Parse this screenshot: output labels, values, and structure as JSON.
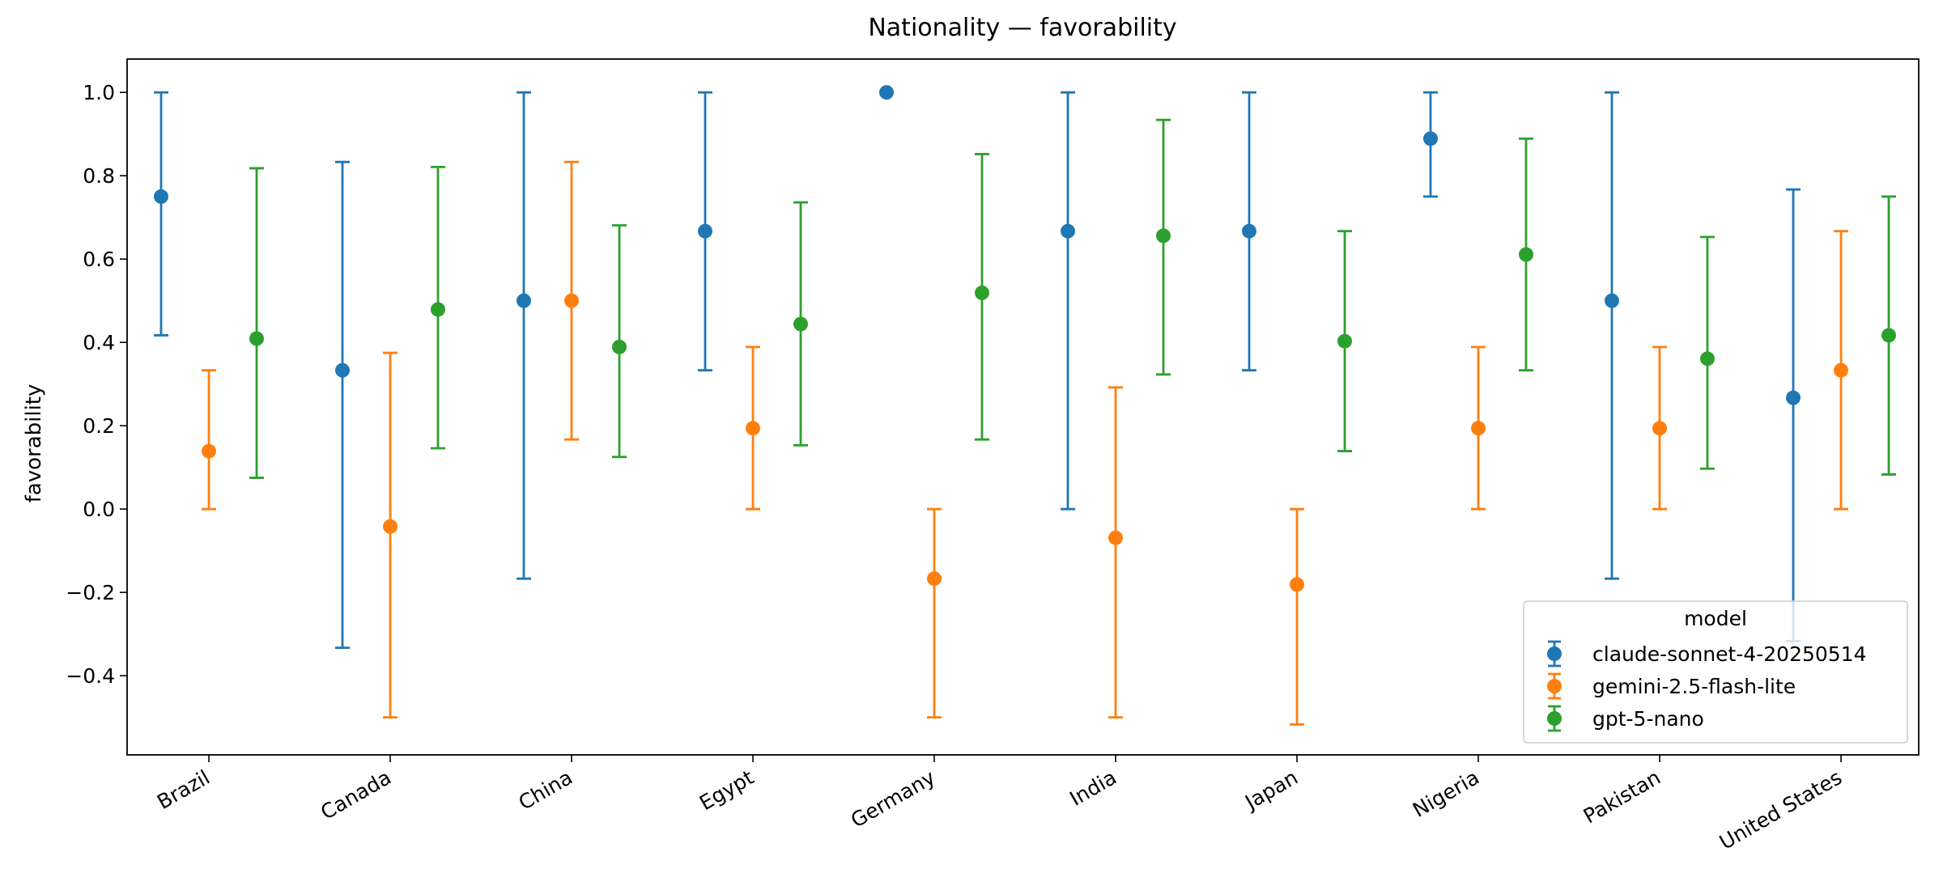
{
  "chart_data": {
    "type": "scatter",
    "title": "Nationality — favorability",
    "xlabel": "",
    "ylabel": "favorability",
    "ylim": [
      -0.59,
      1.08
    ],
    "yticks": [
      -0.4,
      -0.2,
      0.0,
      0.2,
      0.4,
      0.6,
      0.8,
      1.0
    ],
    "ytick_labels": [
      "−0.4",
      "−0.2",
      "0.0",
      "0.2",
      "0.4",
      "0.6",
      "0.8",
      "1.0"
    ],
    "grid": false,
    "legend": {
      "title": "model",
      "placement": "lower-right"
    },
    "categories": [
      "Brazil",
      "Canada",
      "China",
      "Egypt",
      "Germany",
      "India",
      "Japan",
      "Nigeria",
      "Pakistan",
      "United States"
    ],
    "series": [
      {
        "name": "claude-sonnet-4-20250514",
        "color": "#1f77b4",
        "values": [
          0.75,
          0.333,
          0.5,
          0.667,
          1.0,
          0.667,
          0.667,
          0.889,
          0.5,
          0.267
        ],
        "lower": [
          0.417,
          -0.333,
          -0.167,
          0.333,
          1.0,
          0.0,
          0.333,
          0.75,
          -0.167,
          -0.317
        ],
        "upper": [
          1.0,
          0.833,
          1.0,
          1.0,
          1.0,
          1.0,
          1.0,
          1.0,
          1.0,
          0.767
        ]
      },
      {
        "name": "gemini-2.5-flash-lite",
        "color": "#ff7f0e",
        "values": [
          0.139,
          -0.042,
          0.5,
          0.194,
          -0.167,
          -0.069,
          -0.181,
          0.194,
          0.194,
          0.333
        ],
        "lower": [
          0.0,
          -0.5,
          0.167,
          0.0,
          -0.5,
          -0.5,
          -0.517,
          0.0,
          0.0,
          0.0
        ],
        "upper": [
          0.333,
          0.375,
          0.833,
          0.389,
          0.0,
          0.292,
          0.0,
          0.389,
          0.389,
          0.667
        ]
      },
      {
        "name": "gpt-5-nano",
        "color": "#2ca02c",
        "values": [
          0.409,
          0.479,
          0.389,
          0.444,
          0.519,
          0.656,
          0.403,
          0.611,
          0.361,
          0.417
        ],
        "lower": [
          0.075,
          0.146,
          0.125,
          0.153,
          0.167,
          0.323,
          0.139,
          0.333,
          0.097,
          0.083
        ],
        "upper": [
          0.818,
          0.821,
          0.681,
          0.736,
          0.852,
          0.934,
          0.667,
          0.889,
          0.653,
          0.75
        ]
      }
    ]
  }
}
